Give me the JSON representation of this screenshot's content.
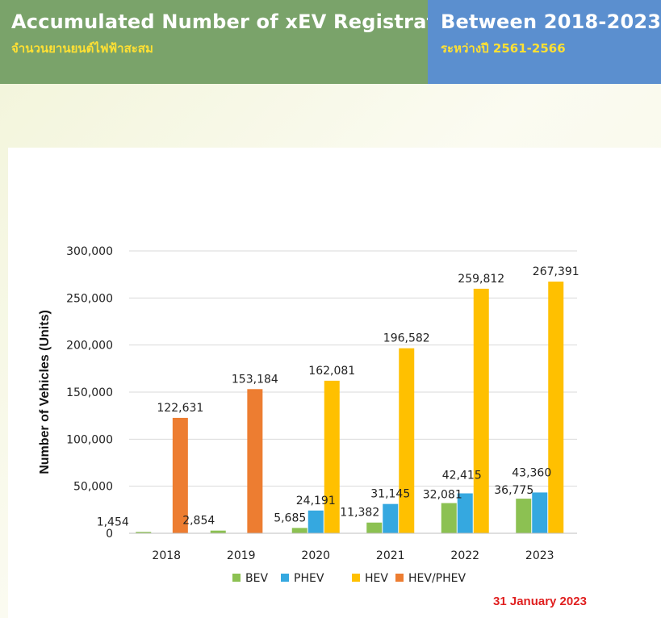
{
  "header": {
    "title_left": "Accumulated Number of xEV Registration",
    "subtitle_left": "จำนวนยานยนต์ไฟฟ้าสะสม",
    "title_right": "Between 2018-2023",
    "subtitle_right": "ระหว่างปี 2561-2566"
  },
  "date_stamp": "31 January 2023",
  "colors": {
    "header_left_bg": "#7aa36a",
    "header_right_bg": "#5b8fcf",
    "subtitle": "#ffe033",
    "date": "#e02020"
  },
  "chart_data": {
    "type": "bar",
    "title": "",
    "xlabel": "",
    "ylabel": "Number of Vehicles (Units)",
    "ylim": [
      0,
      300000
    ],
    "yticks": [
      0,
      50000,
      100000,
      150000,
      200000,
      250000,
      300000
    ],
    "ytick_labels": [
      "0",
      "50,000",
      "100,000",
      "150,000",
      "200,000",
      "250,000",
      "300,000"
    ],
    "grid": true,
    "legend_position": "bottom",
    "categories": [
      "2018",
      "2019",
      "2020",
      "2021",
      "2022",
      "2023"
    ],
    "series": [
      {
        "name": "BEV",
        "color": "#8cc152",
        "values": [
          1454,
          2854,
          5685,
          11382,
          32081,
          36775
        ],
        "labels": [
          "1,454",
          "2,854",
          "5,685",
          "11,382",
          "32,081",
          "36,775"
        ]
      },
      {
        "name": "PHEV",
        "color": "#35a8e0",
        "values": [
          null,
          null,
          24191,
          31145,
          42415,
          43360
        ],
        "labels": [
          "",
          "",
          "24,191",
          "31,145",
          "42,415",
          "43,360"
        ]
      },
      {
        "name": "HEV",
        "color": "#ffc000",
        "values": [
          null,
          null,
          162081,
          196582,
          259812,
          267391
        ],
        "labels": [
          "",
          "",
          "162,081",
          "196,582",
          "259,812",
          "267,391"
        ]
      },
      {
        "name": "HEV/PHEV",
        "color": "#ed7d31",
        "values": [
          122631,
          153184,
          null,
          null,
          null,
          null
        ],
        "labels": [
          "122,631",
          "153,184",
          "",
          "",
          "",
          ""
        ]
      }
    ]
  }
}
